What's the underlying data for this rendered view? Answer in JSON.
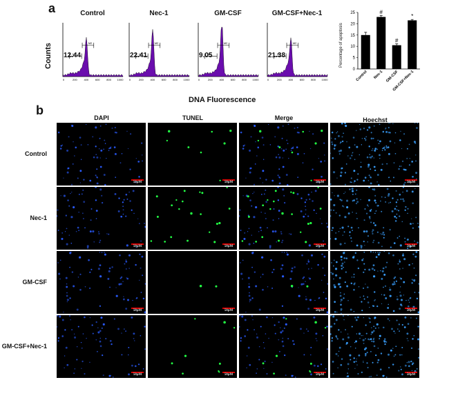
{
  "panel_a": {
    "letter": "a",
    "y_axis_label": "Counts",
    "x_axis_label": "DNA Fluorescence",
    "x_ticks": [
      "0",
      "200",
      "400",
      "600",
      "800",
      "1000"
    ],
    "gate_labels": [
      "M1",
      "M2"
    ],
    "histograms": [
      {
        "title": "Control",
        "value": "12.44"
      },
      {
        "title": "Nec-1",
        "value": "22.41"
      },
      {
        "title": "GM-CSF",
        "value": "9.05"
      },
      {
        "title": "GM-CSF+Nec-1",
        "value": "21.38"
      }
    ],
    "histogram_color": "#6a0dad"
  },
  "chart_data": {
    "type": "bar",
    "title": "",
    "xlabel": "",
    "ylabel": "Percentage of apoptosis",
    "categories": [
      "Control",
      "Nec-1",
      "GM-CSF",
      "GM-CSF+Nec-1"
    ],
    "values": [
      15,
      23,
      10.5,
      21.5
    ],
    "errors": [
      1.2,
      0.6,
      0.6,
      0.4
    ],
    "annotations": [
      "",
      "#",
      "#",
      "*"
    ],
    "ylim": [
      0,
      25
    ],
    "yticks": [
      "0",
      "5",
      "10",
      "15",
      "20",
      "25"
    ],
    "bar_color": "#000000"
  },
  "panel_b": {
    "letter": "b",
    "columns": [
      "DAPI",
      "TUNEL",
      "Merge",
      "Hoechst"
    ],
    "rows": [
      "Control",
      "Nec-1",
      "GM-CSF",
      "GM-CSF+Nec-1"
    ],
    "scale_label": "50μM",
    "colors": {
      "dapi": "#2a5cff",
      "tunel": "#22ff44",
      "hoechst": "#3aa0ff"
    },
    "tunel_density": [
      0.25,
      0.7,
      0.05,
      0.3
    ]
  }
}
